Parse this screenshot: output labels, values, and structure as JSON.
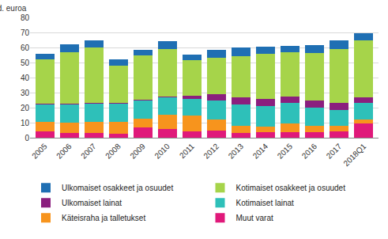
{
  "chart_data": {
    "type": "bar",
    "stacked": true,
    "grid": true,
    "legend": "bottom",
    "ylabel": "mrd. euroa",
    "categories": [
      "2005",
      "2006",
      "2007",
      "2008",
      "2009",
      "2010",
      "2011",
      "2012",
      "2013",
      "2014",
      "2015",
      "2016",
      "2017",
      "2018Q1"
    ],
    "ylim": [
      0,
      80
    ],
    "yticks": [
      0,
      10,
      20,
      30,
      40,
      50,
      60,
      70,
      80
    ],
    "series": [
      {
        "name": "Muut varat",
        "color": "#e0197a",
        "values": [
          4,
          3,
          3,
          2.5,
          7,
          6,
          4,
          5,
          3,
          3.5,
          3.5,
          3.5,
          4,
          9.5
        ]
      },
      {
        "name": "Käteisraha ja talletukset",
        "color": "#f7941d",
        "values": [
          6.5,
          7,
          7.5,
          8,
          5.5,
          9.5,
          11,
          7,
          5,
          4,
          6,
          4.5,
          4,
          2.5
        ]
      },
      {
        "name": "Kotimaiset lainat",
        "color": "#2ec0b9",
        "values": [
          11.5,
          12,
          12,
          12,
          12.5,
          11.5,
          11,
          13,
          14,
          13.5,
          13.5,
          12,
          10.5,
          11
        ]
      },
      {
        "name": "Ulkomaiset lainat",
        "color": "#8b1f7e",
        "values": [
          0.5,
          0.5,
          0.5,
          0.5,
          0.5,
          0.5,
          2,
          4,
          5,
          5,
          4.5,
          4.5,
          4.5,
          4
        ]
      },
      {
        "name": "Kotimaiset osakkeet ja osuudet",
        "color": "#a6d44a",
        "values": [
          29.5,
          34.5,
          37,
          25,
          29,
          31.5,
          23.5,
          24,
          27,
          30,
          29.5,
          32,
          36,
          37.5
        ]
      },
      {
        "name": "Ulkomaiset osakkeet ja osuudet",
        "color": "#1f6fb3",
        "values": [
          4,
          5,
          5,
          4,
          4,
          5,
          4,
          5.5,
          6,
          4.5,
          4,
          5,
          5.5,
          5
        ]
      }
    ]
  }
}
